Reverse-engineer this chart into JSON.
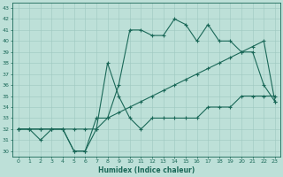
{
  "title": "",
  "xlabel": "Humidex (Indice chaleur)",
  "ylabel_ticks": [
    30,
    31,
    32,
    33,
    34,
    35,
    36,
    37,
    38,
    39,
    40,
    41,
    42,
    43
  ],
  "xlim": [
    -0.5,
    23.5
  ],
  "ylim": [
    29.5,
    43.5
  ],
  "xticks": [
    0,
    1,
    2,
    3,
    4,
    5,
    6,
    7,
    8,
    9,
    10,
    11,
    12,
    13,
    14,
    15,
    16,
    17,
    18,
    19,
    20,
    21,
    22,
    23
  ],
  "background_color": "#bde0d8",
  "grid_color": "#9dc8c0",
  "line_color": "#1a6858",
  "line1_x": [
    0,
    1,
    2,
    3,
    4,
    5,
    6,
    7,
    8,
    9,
    10,
    11,
    12,
    13,
    14,
    15,
    16,
    17,
    18,
    19,
    20,
    21,
    22,
    23
  ],
  "line1_y": [
    32,
    32,
    32,
    32,
    32,
    30,
    30,
    32,
    38,
    35,
    33,
    32,
    33,
    33,
    33,
    33,
    33,
    34,
    34,
    34,
    35,
    35,
    35,
    35
  ],
  "line2_x": [
    0,
    1,
    2,
    3,
    4,
    5,
    6,
    7,
    8,
    9,
    10,
    11,
    12,
    13,
    14,
    15,
    16,
    17,
    18,
    19,
    20,
    21,
    22,
    23
  ],
  "line2_y": [
    32,
    32,
    31,
    32,
    32,
    30,
    30,
    33,
    33,
    36,
    41,
    41,
    40.5,
    40.5,
    42,
    41.5,
    40,
    41.5,
    40,
    40,
    39,
    39,
    36,
    34.5
  ],
  "line3_x": [
    0,
    1,
    2,
    3,
    4,
    5,
    6,
    7,
    8,
    9,
    10,
    11,
    12,
    13,
    14,
    15,
    16,
    17,
    18,
    19,
    20,
    21,
    22,
    23
  ],
  "line3_y": [
    32,
    32,
    32,
    32,
    32,
    32,
    32,
    32,
    33,
    33.5,
    34,
    34.5,
    35,
    35.5,
    36,
    36.5,
    37,
    37.5,
    38,
    38.5,
    39,
    39.5,
    40,
    34.5
  ]
}
